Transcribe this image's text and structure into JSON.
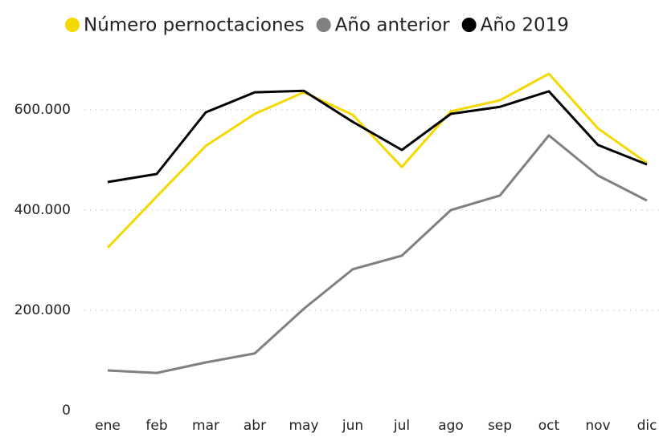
{
  "chart_data": {
    "type": "line",
    "categories": [
      "ene",
      "feb",
      "mar",
      "abr",
      "may",
      "jun",
      "jul",
      "ago",
      "sep",
      "oct",
      "nov",
      "dic"
    ],
    "series": [
      {
        "name": "Número pernoctaciones",
        "color": "#f5d800",
        "values": [
          325000,
          427000,
          528000,
          592000,
          635000,
          590000,
          486000,
          597000,
          619000,
          672000,
          563000,
          494000
        ]
      },
      {
        "name": "Año anterior",
        "color": "#808080",
        "values": [
          80000,
          75000,
          96000,
          114000,
          203000,
          282000,
          309000,
          400000,
          429000,
          549000,
          469000,
          419000
        ]
      },
      {
        "name": "Año 2019",
        "color": "#000000",
        "values": [
          456000,
          472000,
          595000,
          635000,
          638000,
          576000,
          520000,
          592000,
          606000,
          637000,
          530000,
          491000
        ]
      }
    ],
    "ylim": [
      0,
      700000
    ],
    "yticks": [
      0,
      {
        "value": 200000,
        "label": "200.000"
      },
      {
        "value": 400000,
        "label": "400.000"
      },
      {
        "value": 600000,
        "label": "600.000"
      }
    ],
    "grid": true,
    "legend": "top"
  }
}
